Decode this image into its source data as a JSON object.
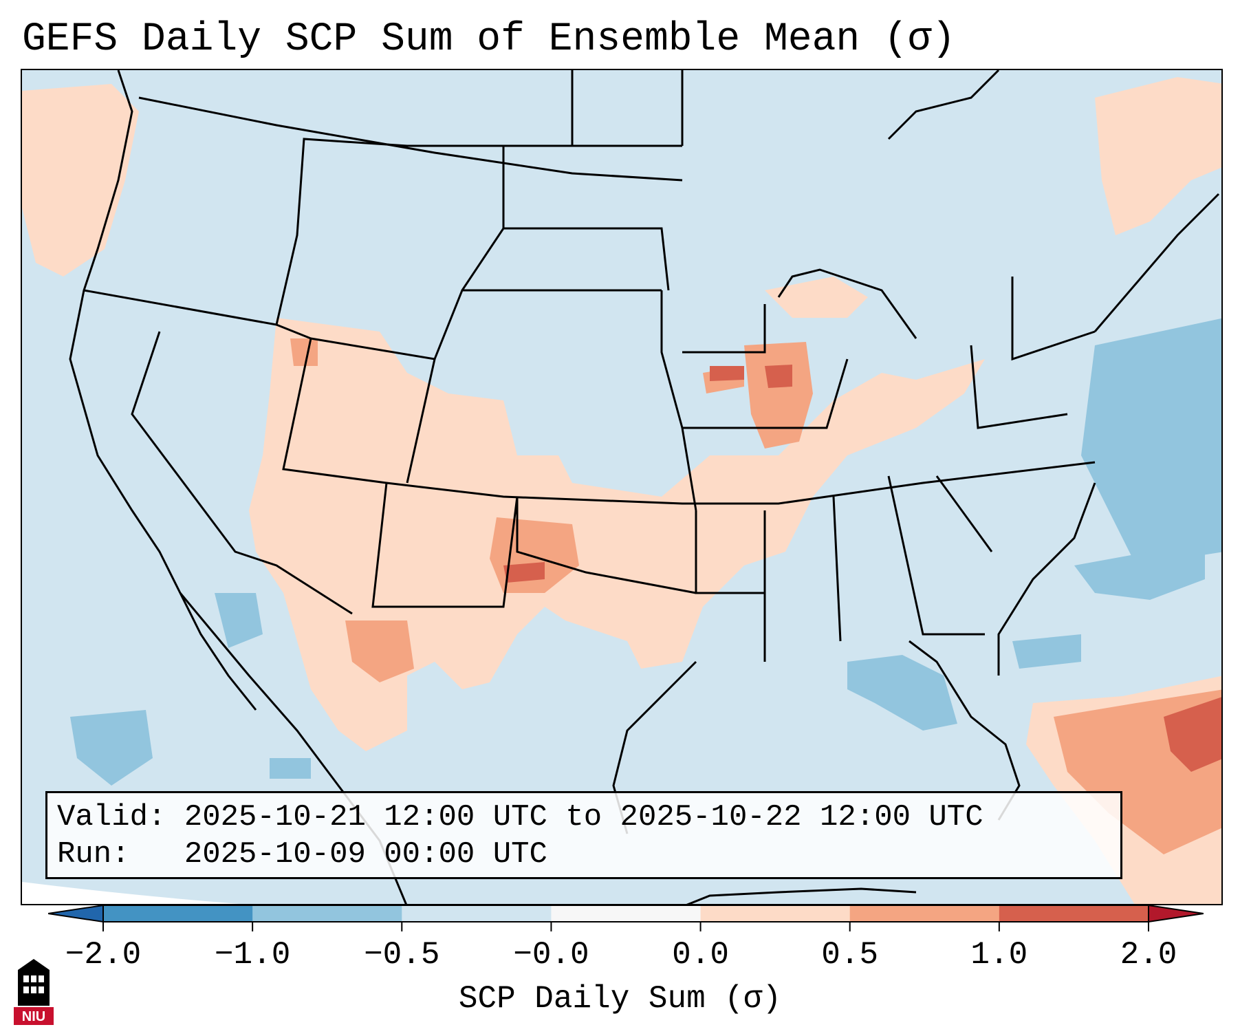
{
  "title": "GEFS Daily SCP Sum of Ensemble Mean (σ)",
  "info": {
    "valid_line": "Valid: 2025-10-21 12:00 UTC to 2025-10-22 12:00 UTC",
    "run_line": "Run:   2025-10-09 00:00 UTC"
  },
  "colorbar": {
    "label": "SCP Daily Sum (σ)",
    "ticks": [
      "−2.0",
      "−1.0",
      "−0.5",
      "−0.0",
      "0.0",
      "0.5",
      "1.0",
      "2.0"
    ],
    "colors": [
      "#4393c3",
      "#92c5de",
      "#d1e5f0",
      "#f7f7f7",
      "#fddbc7",
      "#f4a582",
      "#d6604d"
    ],
    "extend_low_color": "#2166ac",
    "extend_high_color": "#b2182b"
  },
  "logo": {
    "text": "NIU",
    "color": "#c8102e"
  },
  "map": {
    "background_color": "#d1e5f0",
    "coastline_color": "#000000"
  }
}
